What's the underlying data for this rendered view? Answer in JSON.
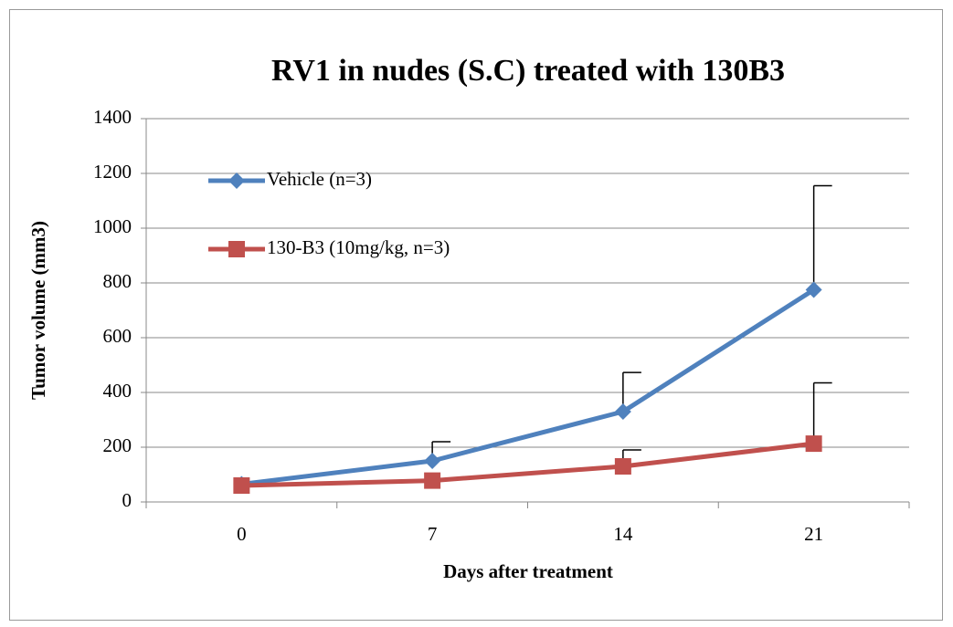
{
  "chart_data": {
    "type": "line",
    "title": "RV1 in nudes (S.C) treated with 130B3",
    "x_label": "Days after treatment",
    "y_label": "Tumor volume (mm3)",
    "categories": [
      "0",
      "7",
      "14",
      "21"
    ],
    "series": [
      {
        "name": "Vehicle (n=3)",
        "color": "#4f81bd",
        "marker": "diamond",
        "values": [
          65,
          150,
          330,
          775
        ],
        "errors": [
          null,
          70,
          143,
          380
        ]
      },
      {
        "name": "130-B3 (10mg/kg, n=3)",
        "color": "#c0504d",
        "marker": "square",
        "values": [
          60,
          78,
          130,
          213
        ],
        "errors": [
          null,
          null,
          60,
          222
        ]
      }
    ],
    "ylim": [
      0,
      1400
    ],
    "yticks": [
      0,
      200,
      400,
      600,
      800,
      1000,
      1200,
      1400
    ],
    "grid": true,
    "legend": "upper-left"
  }
}
